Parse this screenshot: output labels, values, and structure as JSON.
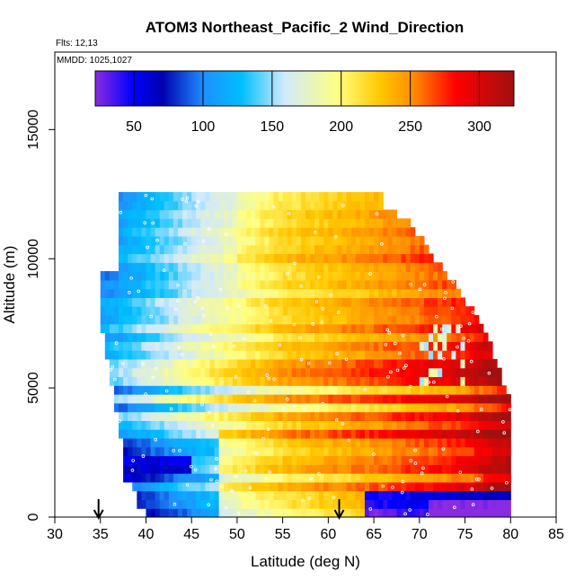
{
  "chart_data": {
    "type": "heatmap",
    "title": "ATOM3 Northeast_Pacific_2 Wind_Direction",
    "annotations": {
      "flights": "Flts: 12,13",
      "dates": "MMDD: 1025,1027"
    },
    "xlabel": "Latitude (deg N)",
    "ylabel": "Altitude (m)",
    "xlim": [
      30,
      85
    ],
    "ylim": [
      0,
      18000
    ],
    "x_ticks": [
      30,
      35,
      40,
      45,
      50,
      55,
      60,
      65,
      70,
      75,
      80,
      85
    ],
    "y_ticks": [
      0,
      5000,
      10000,
      15000
    ],
    "colorbar": {
      "range": [
        22,
        325
      ],
      "ticks": [
        50,
        100,
        150,
        200,
        250,
        300
      ],
      "placement": "top-inside"
    },
    "arrows_at_latitude": [
      34.8,
      61.2
    ],
    "profile_latitudes": [
      37.5,
      42,
      46,
      50,
      55,
      61,
      66,
      71,
      76,
      79
    ],
    "domain_lat_range": [
      35,
      80
    ],
    "domain_top_altitude": [
      12500,
      12500,
      12500,
      12400,
      12400,
      12200,
      12000,
      11500,
      10500,
      9000,
      8000,
      6000
    ]
  }
}
